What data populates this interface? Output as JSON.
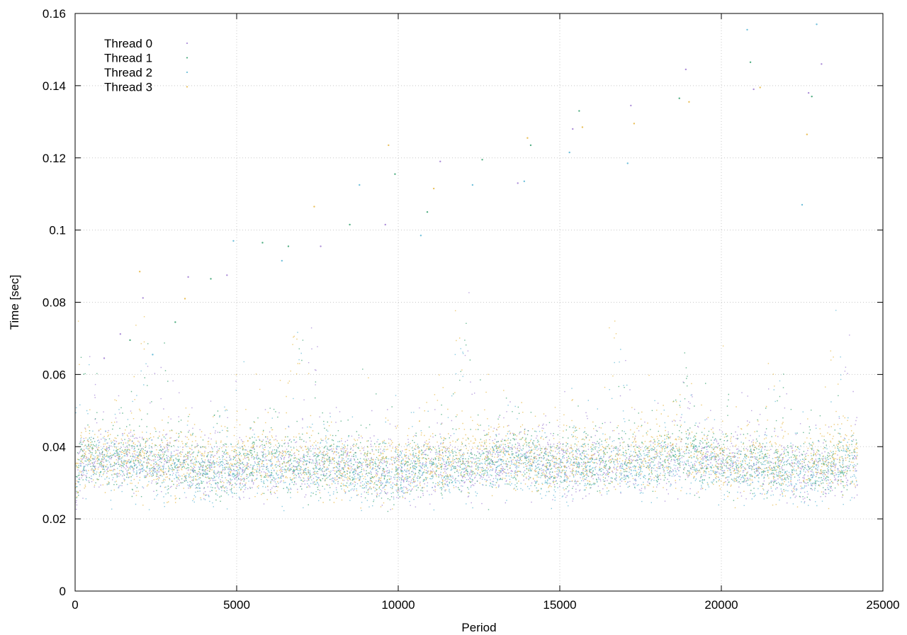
{
  "chart_data": {
    "type": "scatter",
    "xlabel": "Period",
    "ylabel": "Time [sec]",
    "xlim": [
      0,
      25000
    ],
    "ylim": [
      0,
      0.16
    ],
    "x_ticks": [
      0,
      5000,
      10000,
      15000,
      20000,
      25000
    ],
    "y_ticks": [
      0,
      0.02,
      0.04,
      0.06,
      0.08,
      0.1,
      0.12,
      0.14,
      0.16
    ],
    "x_tick_labels": [
      "0",
      "5000",
      "10000",
      "15000",
      "20000",
      "25000"
    ],
    "y_tick_labels": [
      "0",
      "0.02",
      "0.04",
      "0.06",
      "0.08",
      "0.1",
      "0.12",
      "0.14",
      "0.16"
    ],
    "grid": true,
    "grid_style": "dotted",
    "legend_position": "top-left",
    "x_data_range": [
      0,
      24200
    ],
    "typical_range": [
      0.028,
      0.045
    ],
    "series": [
      {
        "name": "Thread 0",
        "color": "#9d7ad1",
        "median": 0.0345,
        "spread": 0.0038,
        "outliers": [
          [
            900,
            0.0645
          ],
          [
            1400,
            0.0712
          ],
          [
            2100,
            0.0812
          ],
          [
            3500,
            0.087
          ],
          [
            4700,
            0.0875
          ],
          [
            7600,
            0.0955
          ],
          [
            9600,
            0.1015
          ],
          [
            11300,
            0.119
          ],
          [
            13700,
            0.113
          ],
          [
            15400,
            0.128
          ],
          [
            17200,
            0.1345
          ],
          [
            18900,
            0.1445
          ],
          [
            21000,
            0.139
          ],
          [
            22700,
            0.138
          ],
          [
            23100,
            0.146
          ]
        ]
      },
      {
        "name": "Thread 1",
        "color": "#2f9e6a",
        "median": 0.0355,
        "spread": 0.004,
        "outliers": [
          [
            1700,
            0.0695
          ],
          [
            3100,
            0.0745
          ],
          [
            4200,
            0.0865
          ],
          [
            5800,
            0.0965
          ],
          [
            6600,
            0.0955
          ],
          [
            8500,
            0.1015
          ],
          [
            9900,
            0.1155
          ],
          [
            10900,
            0.105
          ],
          [
            12600,
            0.1195
          ],
          [
            14100,
            0.1235
          ],
          [
            15600,
            0.133
          ],
          [
            18700,
            0.1365
          ],
          [
            20900,
            0.1465
          ],
          [
            22800,
            0.137
          ]
        ]
      },
      {
        "name": "Thread 2",
        "color": "#56b4d3",
        "median": 0.0335,
        "spread": 0.0036,
        "outliers": [
          [
            2400,
            0.0655
          ],
          [
            4900,
            0.097
          ],
          [
            6400,
            0.0915
          ],
          [
            8800,
            0.1125
          ],
          [
            10700,
            0.0985
          ],
          [
            12300,
            0.1125
          ],
          [
            13900,
            0.1135
          ],
          [
            15300,
            0.1215
          ],
          [
            17100,
            0.1185
          ],
          [
            20800,
            0.1555
          ],
          [
            22500,
            0.107
          ],
          [
            22950,
            0.157
          ]
        ]
      },
      {
        "name": "Thread 3",
        "color": "#e6b53d",
        "median": 0.036,
        "spread": 0.0044,
        "outliers": [
          [
            2000,
            0.0885
          ],
          [
            3400,
            0.081
          ],
          [
            7400,
            0.1065
          ],
          [
            9700,
            0.1235
          ],
          [
            11100,
            0.1115
          ],
          [
            14000,
            0.1255
          ],
          [
            15700,
            0.1285
          ],
          [
            17300,
            0.1295
          ],
          [
            19000,
            0.1355
          ],
          [
            21200,
            0.1395
          ],
          [
            22650,
            0.1265
          ]
        ]
      }
    ]
  }
}
